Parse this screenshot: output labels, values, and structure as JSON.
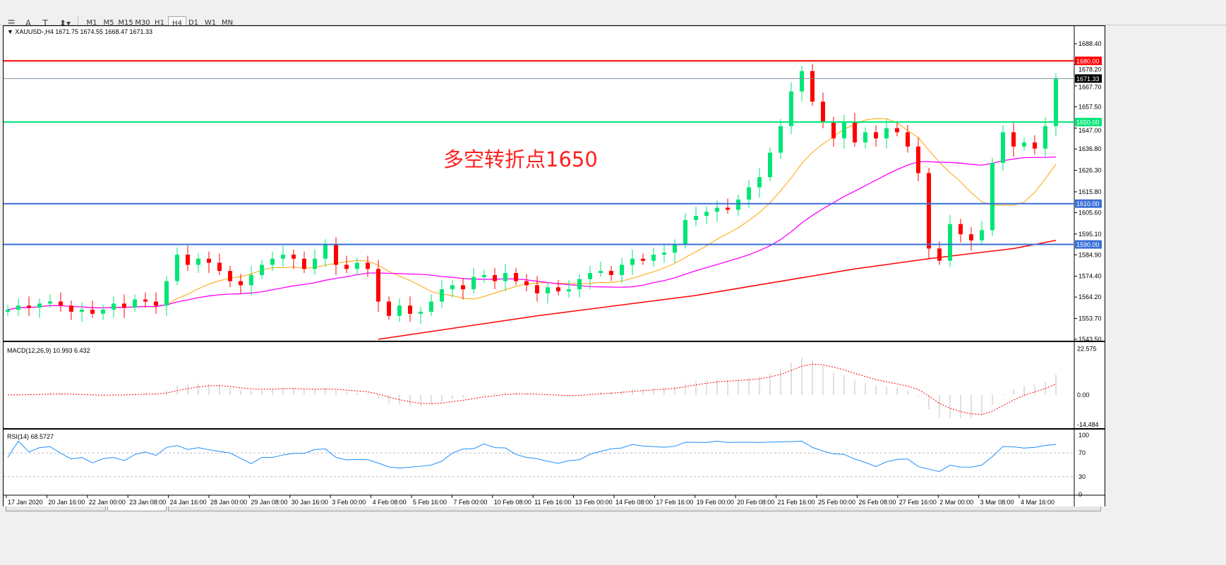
{
  "toolbar": {
    "tools": [
      {
        "icon": "hline-grid-icon",
        "glyph": "☰"
      },
      {
        "icon": "text-icon",
        "glyph": "A"
      },
      {
        "icon": "text-label-icon",
        "glyph": "T"
      },
      {
        "icon": "arrows-dropdown-icon",
        "glyph": "⬍▾"
      }
    ],
    "timeframes": [
      "M1",
      "M5",
      "M15",
      "M30",
      "H1",
      "H4",
      "D1",
      "W1",
      "MN"
    ],
    "active_timeframe": "H4"
  },
  "chart_header": "XAUUSD-,H4  1671.75 1674.55 1668.47 1671.33",
  "annotation": "多空转折点1650",
  "colors": {
    "bull": "#00e676",
    "bear": "#ff0000",
    "ma_fast": "#ffa500",
    "ma_mid": "#ff00ff",
    "ma_slow": "#ff0000",
    "resistance": "#ff0000",
    "pivot": "#00e676",
    "support": "#3a6fd8",
    "macd_hist": "#c0c0c0",
    "macd_signal": "#ff0000",
    "rsi": "#1e90ff"
  },
  "chart_data": {
    "type": "candlestick",
    "symbol": "XAUUSD-",
    "timeframe": "H4",
    "ylim": [
      1543.5,
      1688.4
    ],
    "y_ticks": [
      "1688.40",
      "1678.20",
      "1667.70",
      "1657.50",
      "1647.00",
      "1636.80",
      "1626.30",
      "1615.80",
      "1605.60",
      "1595.10",
      "1584.90",
      "1574.40",
      "1564.20",
      "1553.70",
      "1543.50"
    ],
    "closes": [
      1558,
      1560,
      1559,
      1561,
      1562,
      1560,
      1557,
      1558,
      1556,
      1558,
      1561,
      1559,
      1563,
      1562,
      1560,
      1572,
      1585,
      1580,
      1583,
      1581,
      1577,
      1572,
      1570,
      1575,
      1580,
      1583,
      1585,
      1583,
      1578,
      1583,
      1590,
      1580,
      1578,
      1581,
      1578,
      1562,
      1555,
      1560,
      1556,
      1557,
      1562,
      1568,
      1570,
      1568,
      1574,
      1575,
      1572,
      1576,
      1572,
      1570,
      1566,
      1569,
      1567,
      1568,
      1573,
      1576,
      1577,
      1575,
      1580,
      1583,
      1582,
      1585,
      1586,
      1590,
      1602,
      1604,
      1606,
      1608,
      1607,
      1612,
      1618,
      1623,
      1635,
      1648,
      1665,
      1675,
      1660,
      1650,
      1642,
      1650,
      1640,
      1645,
      1642,
      1647,
      1645,
      1638,
      1625,
      1588,
      1582,
      1600,
      1595,
      1592,
      1597,
      1630,
      1645,
      1638,
      1640,
      1637,
      1648,
      1671.33
    ],
    "slow_ma_points": [
      [
        35,
        1543.5
      ],
      [
        50,
        1555
      ],
      [
        65,
        1565
      ],
      [
        80,
        1578
      ],
      [
        87,
        1583
      ],
      [
        95,
        1588
      ],
      [
        99,
        1592
      ]
    ],
    "levels": [
      {
        "price": 1680.0,
        "label": "1680.00",
        "role": "resistance"
      },
      {
        "price": 1650.0,
        "label": "1650.00",
        "role": "pivot"
      },
      {
        "price": 1610.0,
        "label": "1610.00",
        "role": "support"
      },
      {
        "price": 1590.0,
        "label": "1590.00",
        "role": "support"
      }
    ],
    "current_price": {
      "price": 1671.33,
      "label": "1671.33"
    },
    "x_ticks": [
      "17 Jan 2020",
      "20 Jan 16:00",
      "22 Jan 00:00",
      "23 Jan 08:00",
      "24 Jan 16:00",
      "28 Jan 00:00",
      "29 Jan 08:00",
      "30 Jan 16:00",
      "3 Feb 00:00",
      "4 Feb 08:00",
      "5 Feb 16:00",
      "7 Feb 00:00",
      "10 Feb 08:00",
      "11 Feb 16:00",
      "13 Feb 00:00",
      "14 Feb 08:00",
      "17 Feb 16:00",
      "19 Feb 00:00",
      "20 Feb 08:00",
      "21 Feb 16:00",
      "25 Feb 00:00",
      "26 Feb 08:00",
      "27 Feb 16:00",
      "2 Mar 00:00",
      "3 Mar 08:00",
      "4 Mar 16:00"
    ],
    "macd": {
      "label": "MACD(12,26,9) 10.993 6.432",
      "ylim": [
        -14.484,
        22.575
      ],
      "y_ticks": [
        "22.575",
        "0.00",
        "-14.484"
      ]
    },
    "rsi": {
      "label": "RSI(14) 68.5727",
      "ylim": [
        0,
        100
      ],
      "y_ticks": [
        "100",
        "70",
        "30",
        "0"
      ],
      "levels": [
        70,
        30
      ]
    }
  }
}
